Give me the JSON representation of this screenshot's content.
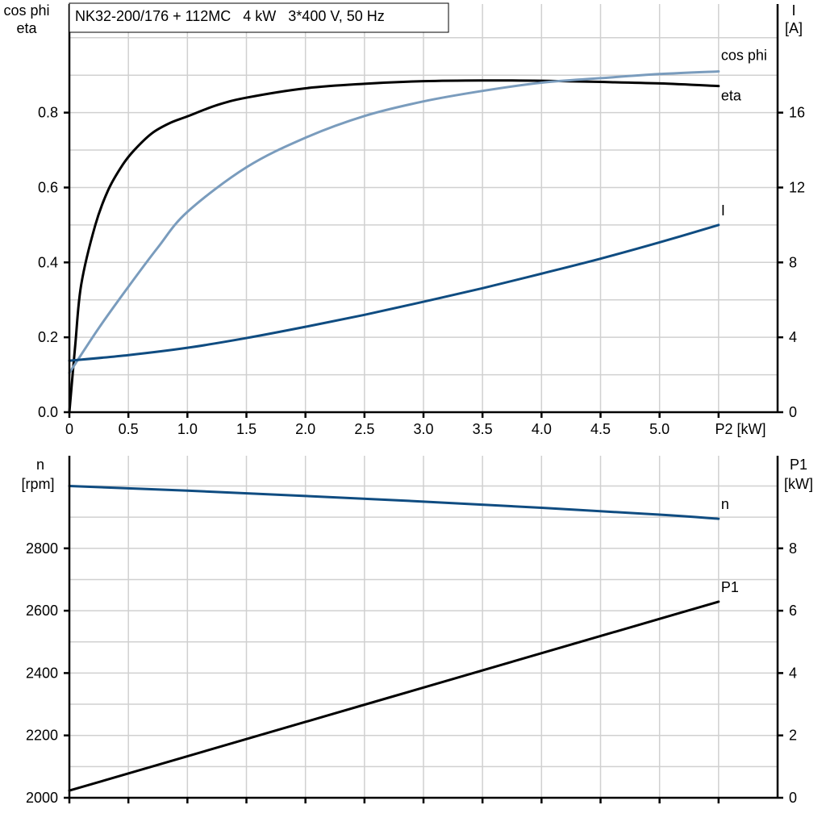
{
  "chart_data": [
    {
      "type": "line",
      "title": "NK32-200/176 + 112MC   4 kW   3*400 V, 50 Hz",
      "xlabel": "P2 [kW]",
      "ylabel_left": [
        "cos phi",
        "eta"
      ],
      "ylabel_right": [
        "I",
        "[A]"
      ],
      "xlim": [
        0,
        6.0
      ],
      "ylim_left": [
        0,
        1.09
      ],
      "ylim_right": [
        0,
        21.8
      ],
      "x_ticks": [
        "0",
        "0.5",
        "1.0",
        "1.5",
        "2.0",
        "2.5",
        "3.0",
        "3.5",
        "4.0",
        "4.5",
        "5.0"
      ],
      "y_ticks_left": [
        "0.0",
        "0.2",
        "0.4",
        "0.6",
        "0.8"
      ],
      "y_ticks_right": [
        "0",
        "4",
        "8",
        "12",
        "16"
      ],
      "grid": true,
      "series": [
        {
          "name": "eta",
          "axis": "left",
          "color": "#000000",
          "x": [
            0,
            0.05,
            0.1,
            0.22,
            0.33,
            0.45,
            0.55,
            0.7,
            0.85,
            1.0,
            1.25,
            1.5,
            2.0,
            2.5,
            3.0,
            3.5,
            4.0,
            4.5,
            5.0,
            5.5
          ],
          "y": [
            0,
            0.18,
            0.34,
            0.5,
            0.594,
            0.66,
            0.7,
            0.745,
            0.772,
            0.79,
            0.82,
            0.84,
            0.865,
            0.877,
            0.884,
            0.886,
            0.885,
            0.882,
            0.878,
            0.871
          ]
        },
        {
          "name": "cos phi",
          "axis": "left",
          "color": "#7a9cbd",
          "x": [
            0,
            0.25,
            0.5,
            0.75,
            1.0,
            1.5,
            2.0,
            2.5,
            3.0,
            3.5,
            4.0,
            4.5,
            5.0,
            5.5
          ],
          "y": [
            0.105,
            0.225,
            0.335,
            0.44,
            0.535,
            0.654,
            0.733,
            0.791,
            0.83,
            0.858,
            0.88,
            0.892,
            0.903,
            0.91
          ]
        },
        {
          "name": "I",
          "axis": "right",
          "color": "#0f4c81",
          "x": [
            0,
            0.5,
            1.0,
            1.5,
            2.0,
            2.5,
            3.0,
            3.5,
            4.0,
            4.5,
            5.0,
            5.5
          ],
          "y": [
            2.75,
            3.05,
            3.44,
            3.96,
            4.56,
            5.2,
            5.9,
            6.62,
            7.4,
            8.2,
            9.07,
            10.0
          ]
        }
      ]
    },
    {
      "type": "line",
      "xlim": [
        0,
        6.0
      ],
      "ylabel_left": [
        "n",
        "[rpm]"
      ],
      "ylabel_right": [
        "P1",
        "[kW]"
      ],
      "ylim_left": [
        2000,
        3097
      ],
      "ylim_right": [
        0,
        10.97
      ],
      "y_ticks_left": [
        "2000",
        "2200",
        "2400",
        "2600",
        "2800"
      ],
      "y_ticks_right": [
        "0",
        "2",
        "4",
        "6",
        "8"
      ],
      "grid": true,
      "series": [
        {
          "name": "n",
          "axis": "left",
          "color": "#0f4c81",
          "x": [
            0,
            1.0,
            2.0,
            3.0,
            4.0,
            5.0,
            5.5
          ],
          "y": [
            3000,
            2985,
            2968,
            2950,
            2930,
            2908,
            2895
          ]
        },
        {
          "name": "P1",
          "axis": "right",
          "color": "#000000",
          "x": [
            0,
            5.5
          ],
          "y": [
            0.23,
            6.29
          ]
        }
      ]
    }
  ]
}
